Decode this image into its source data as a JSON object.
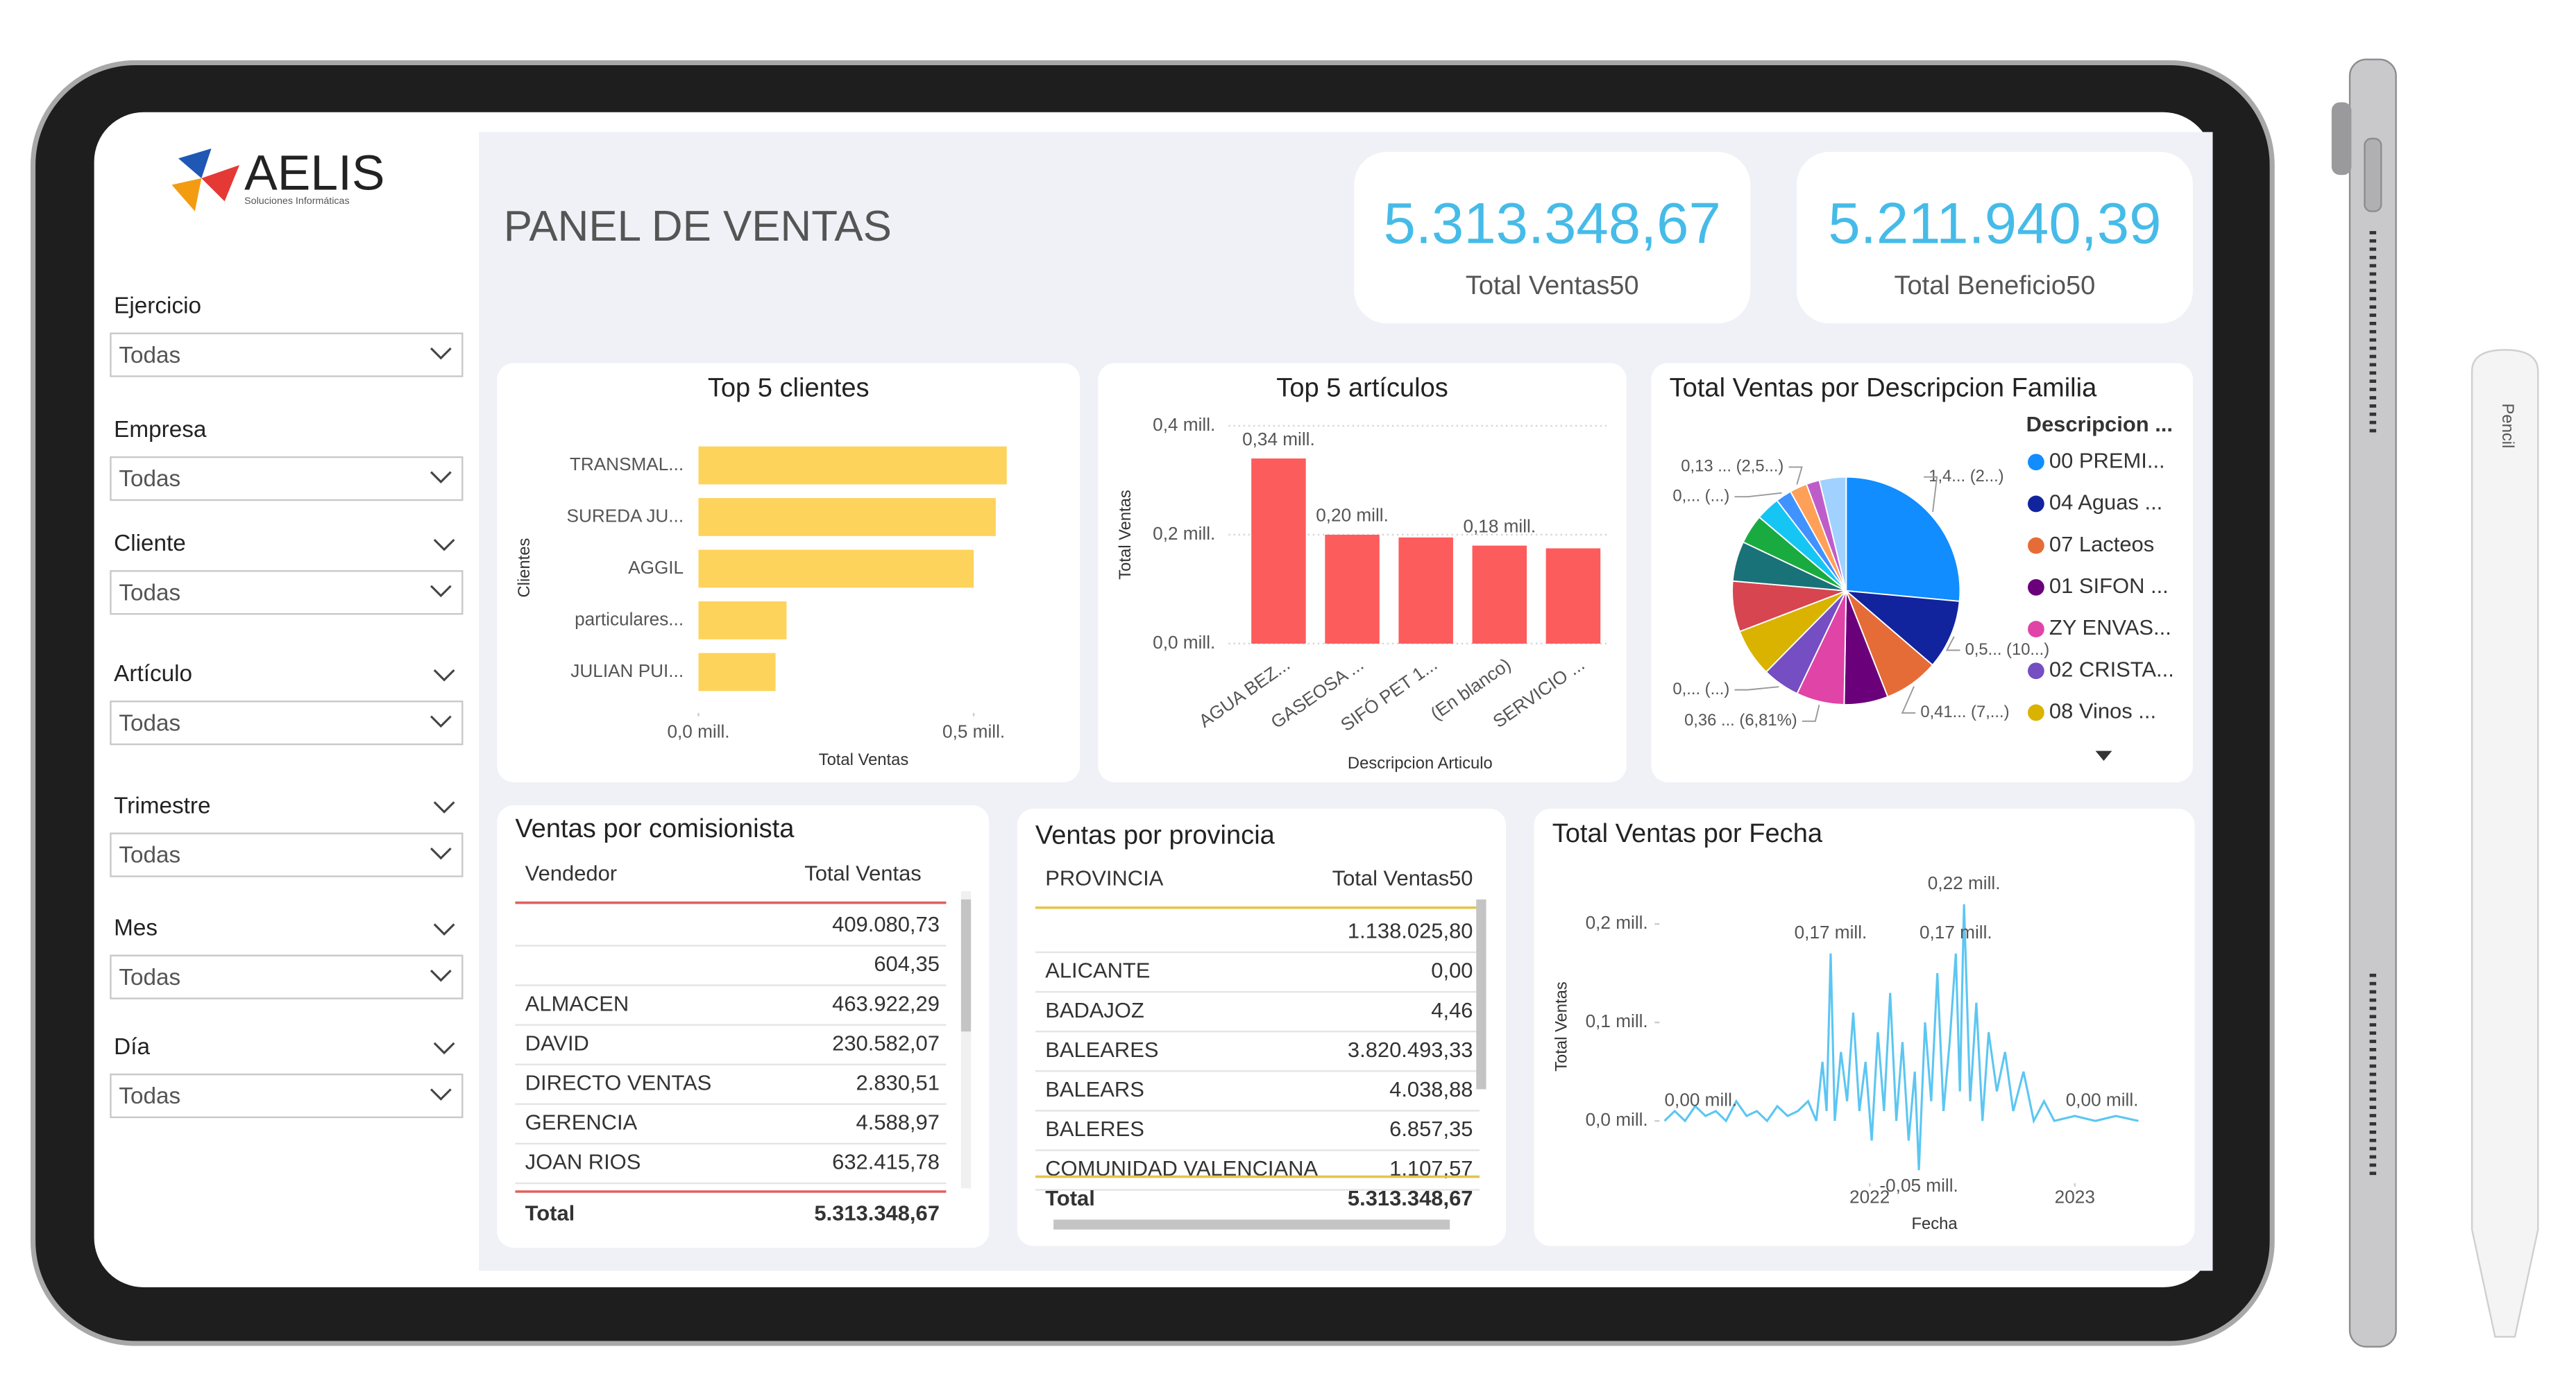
{
  "device": {
    "pencil_label": "Pencil"
  },
  "logo": {
    "name": "AELIS",
    "tagline": "Soluciones Informáticas"
  },
  "title": "PANEL DE VENTAS",
  "kpis": [
    {
      "value": "5.313.348,67",
      "label": "Total Ventas50"
    },
    {
      "value": "5.211.940,39",
      "label": "Total Beneficio50"
    }
  ],
  "slicers": [
    {
      "label": "Ejercicio",
      "value": "Todas"
    },
    {
      "label": "Empresa",
      "value": "Todas"
    },
    {
      "label": "Cliente",
      "value": "Todas"
    },
    {
      "label": "Artículo",
      "value": "Todas"
    },
    {
      "label": "Trimestre",
      "value": "Todas"
    },
    {
      "label": "Mes",
      "value": "Todas"
    },
    {
      "label": "Día",
      "value": "Todas"
    }
  ],
  "chart_data": [
    {
      "type": "hbar",
      "title": "Top 5 clientes",
      "categories": [
        "TRANSMAL...",
        "SUREDA JU...",
        "AGGIL",
        "particulares...",
        "JULIAN PUI..."
      ],
      "values": [
        0.56,
        0.54,
        0.5,
        0.16,
        0.14
      ],
      "color": "#fdd35b",
      "xlim": [
        0,
        0.57
      ],
      "xticks": [
        {
          "value": 0,
          "label": "0,0 mill."
        },
        {
          "value": 0.5,
          "label": "0,5 mill."
        }
      ],
      "x_label": "Total Ventas",
      "y_label": "Clientes"
    },
    {
      "type": "bar",
      "title": "Top 5 artículos",
      "categories": [
        "AGUA BEZ...",
        "GASEOSA ...",
        "SIFÓ PET 1...",
        "(En blanco)",
        "SERVICIO ..."
      ],
      "values": [
        0.34,
        0.2,
        0.195,
        0.18,
        0.175
      ],
      "value_labels": [
        "0,34 mill.",
        "0,20 mill.",
        null,
        "0,18 mill.",
        null
      ],
      "color": "#fd5c5c",
      "ylim": [
        0,
        0.4
      ],
      "yticks": [
        {
          "value": 0,
          "label": "0,0 mill."
        },
        {
          "value": 0.2,
          "label": "0,2 mill."
        },
        {
          "value": 0.4,
          "label": "0,4 mill."
        }
      ],
      "grid": true,
      "x_label": "Descripcion Articulo",
      "y_label": "Total Ventas"
    },
    {
      "type": "pie",
      "title": "Total Ventas por Descripcion Familia",
      "legend_title": "Descripcion ...",
      "categories": [
        "00 PREMI...",
        "04 Aguas ...",
        "07 Lacteos",
        "01 SIFON ...",
        "ZY ENVAS...",
        "02 CRISTA...",
        "08 Vinos ...",
        null,
        null,
        null,
        null,
        null,
        null,
        null,
        null
      ],
      "values": [
        1.4,
        0.52,
        0.41,
        0.33,
        0.36,
        0.28,
        0.36,
        0.38,
        0.3,
        0.22,
        0.18,
        0.12,
        0.13,
        0.1,
        0.2
      ],
      "value_labels": [
        "1,4... (2...)",
        "0,5... (10...)",
        "0,41... (7,...)",
        null,
        "0,36 ... (6,81%)",
        "0,... (...)",
        null,
        null,
        null,
        null,
        null,
        "0,... (...)",
        "0,13 ... (2,5...)",
        null,
        null
      ],
      "colors": [
        "#118dff",
        "#12239e",
        "#e66c37",
        "#6b007b",
        "#e044a7",
        "#744ec2",
        "#d9b300",
        "#d64550",
        "#197278",
        "#1aab40",
        "#15c6f4",
        "#4092ff",
        "#ffa058",
        "#be5dc9",
        "#a0d1ff"
      ]
    },
    {
      "type": "line",
      "title": "Total Ventas por Fecha",
      "color": "#5cc6f2",
      "x": [
        2021.0,
        2021.05,
        2021.1,
        2021.15,
        2021.2,
        2021.25,
        2021.3,
        2021.35,
        2021.4,
        2021.45,
        2021.5,
        2021.55,
        2021.6,
        2021.65,
        2021.7,
        2021.74,
        2021.77,
        2021.79,
        2021.81,
        2021.83,
        2021.86,
        2021.89,
        2021.92,
        2021.95,
        2021.98,
        2022.01,
        2022.04,
        2022.07,
        2022.1,
        2022.13,
        2022.16,
        2022.19,
        2022.22,
        2022.24,
        2022.27,
        2022.3,
        2022.33,
        2022.36,
        2022.39,
        2022.42,
        2022.44,
        2022.46,
        2022.49,
        2022.52,
        2022.55,
        2022.58,
        2022.62,
        2022.66,
        2022.7,
        2022.75,
        2022.8,
        2022.85,
        2022.9,
        2023.0,
        2023.1,
        2023.2,
        2023.31
      ],
      "values": [
        0.0,
        0.01,
        0.0,
        0.015,
        0.005,
        0.01,
        0.0,
        0.02,
        0.005,
        0.01,
        0.0,
        0.015,
        0.005,
        0.01,
        0.02,
        0.0,
        0.06,
        0.01,
        0.17,
        0.0,
        0.07,
        0.02,
        0.11,
        0.01,
        0.06,
        -0.02,
        0.09,
        0.01,
        0.13,
        0.0,
        0.08,
        -0.02,
        0.05,
        -0.05,
        0.1,
        0.02,
        0.15,
        0.01,
        0.08,
        0.17,
        0.03,
        0.22,
        0.02,
        0.12,
        0.0,
        0.09,
        0.03,
        0.07,
        0.01,
        0.05,
        0.0,
        0.02,
        0.0,
        0.005,
        0.0,
        0.005,
        0.0
      ],
      "value_labels": [
        "0,00 mill.",
        null,
        null,
        null,
        null,
        null,
        null,
        null,
        null,
        null,
        null,
        null,
        null,
        null,
        null,
        null,
        null,
        null,
        "0,17 mill.",
        null,
        null,
        null,
        null,
        null,
        null,
        null,
        null,
        null,
        null,
        null,
        null,
        null,
        null,
        "-0,05 mill.",
        null,
        null,
        null,
        null,
        null,
        "0,17 mill.",
        null,
        "0,22 mill.",
        null,
        null,
        null,
        null,
        null,
        null,
        null,
        null,
        null,
        null,
        null,
        null,
        null,
        null,
        "0,00 mill."
      ],
      "xlim": [
        2021.0,
        2023.31
      ],
      "xticks": [
        2022,
        2023
      ],
      "ylim": [
        -0.06,
        0.25
      ],
      "yticks": [
        {
          "value": 0,
          "label": "0,0 mill."
        },
        {
          "value": 0.1,
          "label": "0,1 mill."
        },
        {
          "value": 0.2,
          "label": "0,2 mill."
        }
      ],
      "x_label": "Fecha",
      "y_label": "Total Ventas"
    }
  ],
  "tables": [
    {
      "title": "Ventas por comisionista",
      "columns": [
        "Vendedor",
        "Total Ventas"
      ],
      "rows": [
        [
          null,
          "409.080,73"
        ],
        [
          null,
          "604,35"
        ],
        [
          "ALMACEN",
          "463.922,29"
        ],
        [
          "DAVID",
          "230.582,07"
        ],
        [
          "DIRECTO VENTAS",
          "2.830,51"
        ],
        [
          "GERENCIA",
          "4.588,97"
        ],
        [
          "JOAN RIOS",
          "632.415,78"
        ]
      ],
      "total": [
        "Total",
        "5.313.348,67"
      ]
    },
    {
      "title": "Ventas por provincia",
      "columns": [
        "PROVINCIA",
        "Total Ventas50"
      ],
      "rows": [
        [
          null,
          "1.138.025,80"
        ],
        [
          "ALICANTE",
          "0,00"
        ],
        [
          "BADAJOZ",
          "4,46"
        ],
        [
          "BALEARES",
          "3.820.493,33"
        ],
        [
          "BALEARS",
          "4.038,88"
        ],
        [
          "BALERES",
          "6.857,35"
        ],
        [
          "COMUNIDAD VALENCIANA",
          "1.107,57"
        ]
      ],
      "total": [
        "Total",
        "5.313.348,67"
      ]
    }
  ]
}
